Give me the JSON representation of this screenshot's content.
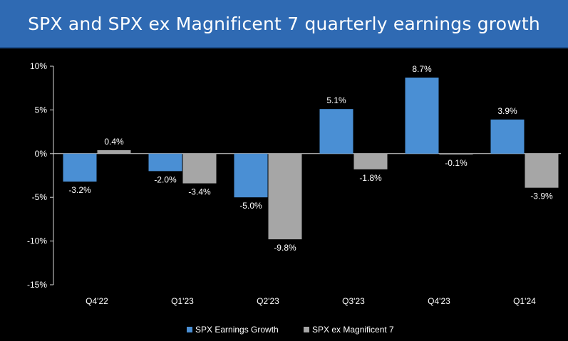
{
  "title": "SPX and SPX ex Magnificent 7 quarterly earnings growth",
  "colors": {
    "background": "#000000",
    "title_bar": "#2f6ab3",
    "series_1": "#4a8fd4",
    "series_2": "#a6a6a6"
  },
  "chart_data": {
    "type": "bar",
    "categories": [
      "Q4'22",
      "Q1'23",
      "Q2'23",
      "Q3'23",
      "Q4'23",
      "Q1'24"
    ],
    "series": [
      {
        "name": "SPX Earnings Growth",
        "values": [
          -3.2,
          -2.0,
          -5.0,
          5.1,
          8.7,
          3.9
        ],
        "labels": [
          "-3.2%",
          "-2.0%",
          "-5.0%",
          "5.1%",
          "8.7%",
          "3.9%"
        ]
      },
      {
        "name": "SPX ex Magnificent 7",
        "values": [
          0.4,
          -3.4,
          -9.8,
          -1.8,
          -0.1,
          -3.9
        ],
        "labels": [
          "0.4%",
          "-3.4%",
          "-9.8%",
          "-1.8%",
          "-0.1%",
          "-3.9%"
        ]
      }
    ],
    "y_ticks": [
      10,
      5,
      0,
      -5,
      -10,
      -15
    ],
    "y_tick_labels": [
      "10%",
      "5%",
      "0%",
      "-5%",
      "-10%",
      "-15%"
    ],
    "ylim": [
      -15,
      10
    ],
    "legend_position": "bottom",
    "grid": false
  }
}
